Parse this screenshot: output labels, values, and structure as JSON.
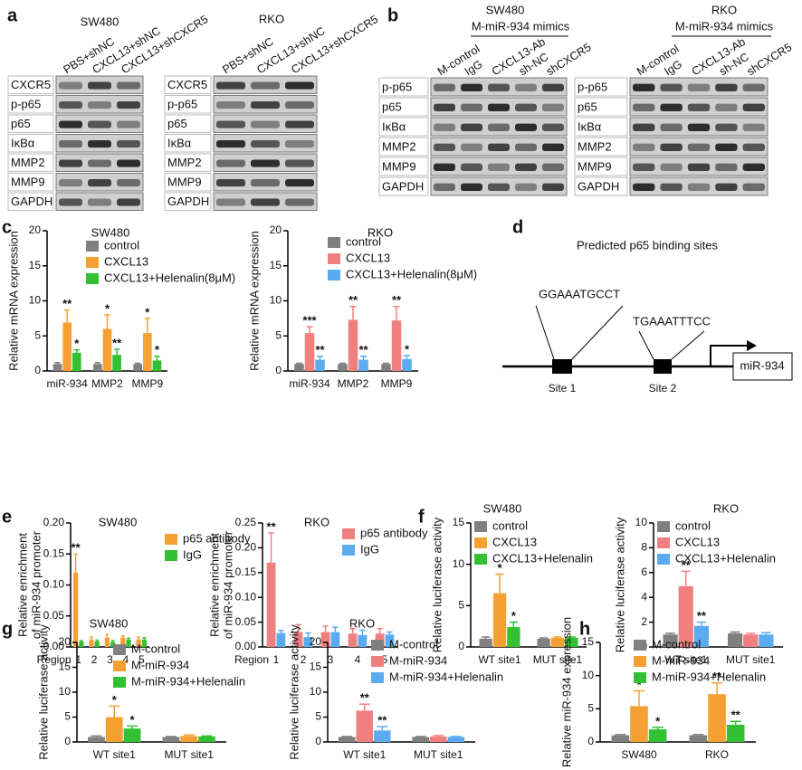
{
  "panel_labels": [
    "a",
    "b",
    "c",
    "d",
    "e",
    "f",
    "g",
    "h"
  ],
  "blots": [
    {
      "title": "SW480",
      "lanes": [
        "PBS+shNC",
        "CXCL13+shNC",
        "CXCL13+shCXCR5"
      ],
      "rows": [
        "CXCR5",
        "p-p65",
        "p65",
        "IκBα",
        "MMP2",
        "MMP9",
        "GAPDH"
      ]
    },
    {
      "title": "RKO",
      "lanes": [
        "PBS+shNC",
        "CXCL13+shNC",
        "CXCL13+shCXCR5"
      ],
      "rows": [
        "CXCR5",
        "p-p65",
        "p65",
        "IκBα",
        "MMP2",
        "MMP9",
        "GAPDH"
      ]
    },
    {
      "title": "SW480",
      "subtitle": "M-miR-934 mimics",
      "lanes": [
        "M-control",
        "IgG",
        "CXCL13-Ab",
        "sh-NC",
        "shCXCR5"
      ],
      "rows": [
        "p-p65",
        "p65",
        "IκBα",
        "MMP2",
        "MMP9",
        "GAPDH"
      ]
    },
    {
      "title": "RKO",
      "subtitle": "M-miR-934 mimics",
      "lanes": [
        "M-control",
        "IgG",
        "CXCL13-Ab",
        "sh-NC",
        "shCXCR5"
      ],
      "rows": [
        "p-p65",
        "p65",
        "IκBα",
        "MMP2",
        "MMP9",
        "GAPDH"
      ]
    }
  ],
  "diagram": {
    "title": "Predicted p65 binding sites",
    "sequences": [
      "GGAAATGCCT",
      "TGAAATTTCC"
    ],
    "sites": [
      "Site 1",
      "Site 2"
    ],
    "gene": "miR-934"
  },
  "chart_data": [
    {
      "type": "bar",
      "title": "SW480",
      "y_label": "Relative mRNA expression",
      "categories": [
        "miR-934",
        "MMP2",
        "MMP9"
      ],
      "ylim": [
        0,
        20
      ],
      "yticks": [
        0,
        5,
        10,
        15,
        20
      ],
      "series": [
        {
          "name": "control",
          "color": "#808080",
          "values": [
            1,
            1,
            1
          ],
          "errors": [
            0.2,
            0.2,
            0.1
          ],
          "stars": [
            null,
            null,
            null
          ]
        },
        {
          "name": "CXCL13",
          "color": "#f5a033",
          "values": [
            6.9,
            6.0,
            5.4
          ],
          "errors": [
            1.8,
            2.0,
            2.1
          ],
          "stars": [
            "**",
            "*",
            "*"
          ]
        },
        {
          "name": "CXCL13+Helenalin(8μM)",
          "color": "#33c133",
          "values": [
            2.6,
            2.3,
            1.5
          ],
          "errors": [
            0.4,
            0.8,
            0.6
          ],
          "stars": [
            "*",
            "**",
            "*"
          ]
        }
      ]
    },
    {
      "type": "bar",
      "title": "RKO",
      "y_label": "Relative mRNA expression",
      "categories": [
        "miR-934",
        "MMP2",
        "MMP9"
      ],
      "ylim": [
        0,
        20
      ],
      "yticks": [
        0,
        5,
        10,
        15,
        20
      ],
      "series": [
        {
          "name": "control",
          "color": "#7f7f7f",
          "values": [
            1,
            1,
            1
          ],
          "errors": [
            0.1,
            0.1,
            0.1
          ],
          "stars": [
            null,
            null,
            null
          ]
        },
        {
          "name": "CXCL13",
          "color": "#f08080",
          "values": [
            5.4,
            7.3,
            7.2
          ],
          "errors": [
            0.9,
            1.9,
            2.0
          ],
          "stars": [
            "***",
            "**",
            "**"
          ]
        },
        {
          "name": "CXCL13+Helenalin(8μM)",
          "color": "#5aabf0",
          "values": [
            1.6,
            1.6,
            1.7
          ],
          "errors": [
            0.5,
            0.5,
            0.5
          ],
          "stars": [
            "**",
            "**",
            "*"
          ]
        }
      ]
    },
    {
      "type": "bar",
      "title": "SW480",
      "y_label": [
        "Relative enrichment",
        "of miR-934 promoter"
      ],
      "x_label": "Region",
      "categories": [
        "1",
        "2",
        "3",
        "4",
        "5"
      ],
      "ylim": [
        0,
        0.2
      ],
      "yticks": [
        {
          "value": 0,
          "label": "0.00"
        },
        {
          "value": 0.05,
          "label": "0.05"
        },
        {
          "value": 0.1,
          "label": "0.10"
        },
        {
          "value": 0.15,
          "label": "0.15"
        },
        {
          "value": 0.2,
          "label": "0.20"
        }
      ],
      "series": [
        {
          "name": "p65 antibody",
          "color": "#f5a033",
          "values": [
            0.12,
            0.012,
            0.015,
            0.015,
            0.012
          ],
          "errors": [
            0.03,
            0.004,
            0.005,
            0.003,
            0.004
          ],
          "stars": [
            "**",
            null,
            null,
            null,
            null
          ]
        },
        {
          "name": "IgG",
          "color": "#33c133",
          "values": [
            0.009,
            0.009,
            0.008,
            0.012,
            0.012
          ],
          "errors": [
            0.001,
            0.002,
            0.002,
            0.002,
            0.003
          ],
          "stars": [
            null,
            null,
            null,
            null,
            null
          ]
        }
      ]
    },
    {
      "type": "bar",
      "title": "RKO",
      "y_label": [
        "Relative enrichment",
        "of miR-934 promoter"
      ],
      "x_label": "Region",
      "categories": [
        "1",
        "2",
        "3",
        "4",
        "5"
      ],
      "ylim": [
        0,
        0.25
      ],
      "yticks": [
        {
          "value": 0,
          "label": "0.00"
        },
        {
          "value": 0.05,
          "label": "0.05"
        },
        {
          "value": 0.1,
          "label": "0.10"
        },
        {
          "value": 0.15,
          "label": "0.15"
        },
        {
          "value": 0.2,
          "label": "0.20"
        },
        {
          "value": 0.25,
          "label": "0.25"
        }
      ],
      "series": [
        {
          "name": "p65 antibody",
          "color": "#f08080",
          "values": [
            0.17,
            0.03,
            0.03,
            0.027,
            0.027
          ],
          "errors": [
            0.06,
            0.015,
            0.012,
            0.01,
            0.01
          ],
          "stars": [
            "**",
            null,
            null,
            null,
            null
          ]
        },
        {
          "name": "IgG",
          "color": "#5aabf0",
          "values": [
            0.028,
            0.02,
            0.03,
            0.024,
            0.025
          ],
          "errors": [
            0.005,
            0.008,
            0.01,
            0.01,
            0.005
          ],
          "stars": [
            null,
            null,
            null,
            null,
            null
          ]
        }
      ]
    },
    {
      "type": "bar",
      "title": "SW480",
      "y_label": "Relative luciferase activity",
      "categories": [
        "WT site1",
        "MUT site1"
      ],
      "ylim": [
        0,
        15
      ],
      "yticks": [
        0,
        5,
        10,
        15
      ],
      "series": [
        {
          "name": "control",
          "color": "#808080",
          "values": [
            1,
            1
          ],
          "errors": [
            0.2,
            0.1
          ],
          "stars": [
            null,
            null
          ]
        },
        {
          "name": "CXCL13",
          "color": "#f5a033",
          "values": [
            6.5,
            1.1
          ],
          "errors": [
            2.3,
            0.1
          ],
          "stars": [
            "*",
            null
          ]
        },
        {
          "name": "CXCL13+Helenalin",
          "color": "#33c133",
          "values": [
            2.4,
            1.1
          ],
          "errors": [
            0.6,
            0.1
          ],
          "stars": [
            "*",
            null
          ]
        }
      ]
    },
    {
      "type": "bar",
      "title": "RKO",
      "y_label": "Relative luciferase activity",
      "categories": [
        "WT site1",
        "MUT site1"
      ],
      "ylim": [
        0,
        10
      ],
      "yticks": [
        0,
        2,
        4,
        6,
        8,
        10
      ],
      "series": [
        {
          "name": "control",
          "color": "#7f7f7f",
          "values": [
            1,
            1.1
          ],
          "errors": [
            0.1,
            0.1
          ],
          "stars": [
            null,
            null
          ]
        },
        {
          "name": "CXCL13",
          "color": "#f08080",
          "values": [
            4.9,
            1.0
          ],
          "errors": [
            1.2,
            0.1
          ],
          "stars": [
            "**",
            null
          ]
        },
        {
          "name": "CXCL13+Helenalin",
          "color": "#5aabf0",
          "values": [
            1.7,
            1.0
          ],
          "errors": [
            0.3,
            0.15
          ],
          "stars": [
            "**",
            null
          ]
        }
      ]
    },
    {
      "type": "bar",
      "title": "SW480",
      "y_label": "Relative luciferase activity",
      "categories": [
        "WT site1",
        "MUT site1"
      ],
      "ylim": [
        0,
        20
      ],
      "yticks": [
        0,
        5,
        10,
        15,
        20
      ],
      "series": [
        {
          "name": "M-control",
          "color": "#808080",
          "values": [
            1,
            1
          ],
          "errors": [
            0.2,
            0.1
          ],
          "stars": [
            null,
            null
          ]
        },
        {
          "name": "M-miR-934",
          "color": "#f5a033",
          "values": [
            5.0,
            1.2
          ],
          "errors": [
            2.2,
            0.2
          ],
          "stars": [
            "*",
            null
          ]
        },
        {
          "name": "M-miR-934+Helenalin",
          "color": "#33c133",
          "values": [
            2.7,
            1.1
          ],
          "errors": [
            0.5,
            0.1
          ],
          "stars": [
            "*",
            null
          ]
        }
      ]
    },
    {
      "type": "bar",
      "title": "RKO",
      "y_label": "Relative luciferase activity",
      "categories": [
        "WT site1",
        "MUT site1"
      ],
      "ylim": [
        0,
        20
      ],
      "yticks": [
        0,
        5,
        10,
        15,
        20
      ],
      "series": [
        {
          "name": "M-control",
          "color": "#7f7f7f",
          "values": [
            1,
            1
          ],
          "errors": [
            0.1,
            0.1
          ],
          "stars": [
            null,
            null
          ]
        },
        {
          "name": "M-miR-934",
          "color": "#f08080",
          "values": [
            6.3,
            1.1
          ],
          "errors": [
            1.3,
            0.2
          ],
          "stars": [
            "**",
            null
          ]
        },
        {
          "name": "M-miR-934+Helenalin",
          "color": "#5aabf0",
          "values": [
            2.3,
            1.0
          ],
          "errors": [
            0.8,
            0.1
          ],
          "stars": [
            "**",
            null
          ]
        }
      ]
    },
    {
      "type": "bar",
      "y_label": "Relative miR-934 expression",
      "categories": [
        "SW480",
        "RKO"
      ],
      "ylim": [
        0,
        15
      ],
      "yticks": [
        0,
        5,
        10,
        15
      ],
      "series": [
        {
          "name": "M-control",
          "color": "#808080",
          "values": [
            1,
            1
          ],
          "errors": [
            0.1,
            0.1
          ],
          "stars": [
            null,
            null
          ]
        },
        {
          "name": "M-miR-934",
          "color": "#f5a033",
          "values": [
            5.4,
            7.2
          ],
          "errors": [
            2.3,
            1.7
          ],
          "stars": [
            "*",
            "**"
          ]
        },
        {
          "name": "M-miR-934+Helenalin",
          "color": "#33c133",
          "values": [
            1.9,
            2.6
          ],
          "errors": [
            0.3,
            0.5
          ],
          "stars": [
            "*",
            "**"
          ]
        }
      ]
    }
  ]
}
